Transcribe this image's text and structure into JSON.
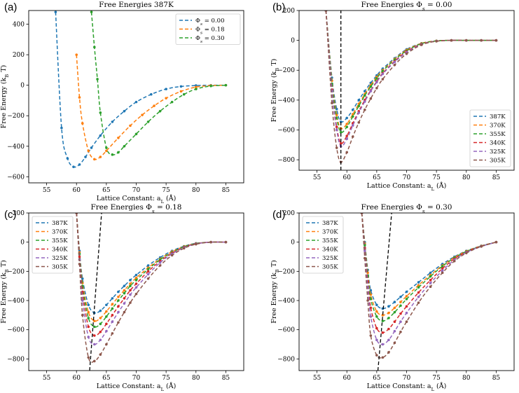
{
  "colors": {
    "387K": "#1f77b4",
    "370K": "#ff7f0e",
    "355K": "#2ca02c",
    "340K": "#d62728",
    "325K": "#9467bd",
    "305K": "#8c564b"
  },
  "panel_labels": [
    "(a)",
    "(b)",
    "(c)",
    "(d)"
  ],
  "chart_data": [
    {
      "type": "line",
      "title": "Free Energies 387K",
      "xlabel": "Lattice Constant: a_L (Å)",
      "ylabel": "Free Energy (k_B T)",
      "xlim": [
        52,
        88
      ],
      "ylim": [
        -640,
        490
      ],
      "xticks": [
        55,
        60,
        65,
        70,
        75,
        80,
        85
      ],
      "yticks": [
        -600,
        -400,
        -200,
        0,
        200,
        400
      ],
      "legend_position": "top-right",
      "series": [
        {
          "name": "Φs = 0.00",
          "color": "#1f77b4",
          "x": [
            56.5,
            57.5,
            58.5,
            59.5,
            60.5,
            61.5,
            62.5,
            64,
            66,
            68,
            70,
            72.5,
            75,
            77.5,
            80,
            82.5,
            85
          ],
          "y": [
            480,
            -280,
            -480,
            -535,
            -520,
            -470,
            -410,
            -330,
            -240,
            -170,
            -110,
            -60,
            -25,
            -8,
            -2,
            0,
            0
          ]
        },
        {
          "name": "Φs = 0.18",
          "color": "#ff7f0e",
          "x": [
            60,
            60.5,
            61,
            62,
            63,
            64,
            65,
            67,
            69,
            71,
            73,
            75,
            77.5,
            80,
            82.5,
            85
          ],
          "y": [
            200,
            -80,
            -250,
            -430,
            -485,
            -470,
            -430,
            -345,
            -265,
            -195,
            -135,
            -85,
            -40,
            -12,
            -2,
            0
          ]
        },
        {
          "name": "Φs = 0.30",
          "color": "#2ca02c",
          "x": [
            62.5,
            63,
            63.5,
            64,
            65,
            66,
            67,
            68,
            70,
            72,
            74,
            76,
            78,
            80,
            82.5,
            85
          ],
          "y": [
            480,
            250,
            40,
            -180,
            -410,
            -455,
            -440,
            -400,
            -320,
            -240,
            -170,
            -110,
            -60,
            -25,
            -5,
            0
          ]
        }
      ]
    },
    {
      "type": "line",
      "title": "Free Energies Φs = 0.00",
      "xlabel": "Lattice Constant: a_L (Å)",
      "ylabel": "Free Energy (k_B T)",
      "xlim": [
        52,
        88
      ],
      "ylim": [
        -870,
        200
      ],
      "xticks": [
        55,
        60,
        65,
        70,
        75,
        80,
        85
      ],
      "yticks": [
        -800,
        -600,
        -400,
        -200,
        0,
        200
      ],
      "legend_position": "bottom-right",
      "minimum_line": "vertical dashed at x = 59",
      "series": [
        {
          "name": "387K",
          "x": [
            56.5,
            57.5,
            58.3,
            59,
            60,
            61,
            62,
            63,
            64,
            65,
            66,
            68,
            70,
            72.5,
            75,
            77.5,
            80,
            82.5,
            85
          ],
          "y": [
            200,
            -250,
            -460,
            -545,
            -520,
            -465,
            -400,
            -340,
            -285,
            -235,
            -190,
            -120,
            -60,
            -20,
            -3,
            0,
            0,
            0,
            0
          ]
        },
        {
          "name": "370K",
          "x": [
            56.5,
            57.5,
            58.3,
            59,
            60,
            61,
            62,
            63,
            64,
            65,
            66,
            68,
            70,
            72.5,
            75,
            77.5,
            80,
            82.5,
            85
          ],
          "y": [
            200,
            -270,
            -500,
            -590,
            -560,
            -495,
            -425,
            -360,
            -300,
            -245,
            -200,
            -125,
            -65,
            -20,
            -3,
            0,
            0,
            0,
            0
          ]
        },
        {
          "name": "355K",
          "x": [
            56.5,
            57.5,
            58.3,
            59,
            60,
            61,
            62,
            63,
            64,
            65,
            66,
            68,
            70,
            72.5,
            75,
            77.5,
            80,
            82.5,
            85
          ],
          "y": [
            200,
            -290,
            -520,
            -615,
            -580,
            -510,
            -440,
            -370,
            -310,
            -255,
            -205,
            -130,
            -70,
            -22,
            -4,
            0,
            0,
            0,
            0
          ]
        },
        {
          "name": "340K",
          "x": [
            56.5,
            57.5,
            58.3,
            59,
            60,
            61,
            62,
            63,
            64,
            65,
            66,
            68,
            70,
            72.5,
            75,
            77.5,
            80,
            82.5,
            85
          ],
          "y": [
            200,
            -330,
            -580,
            -690,
            -640,
            -555,
            -475,
            -400,
            -335,
            -275,
            -220,
            -140,
            -75,
            -25,
            -5,
            0,
            0,
            0,
            0
          ]
        },
        {
          "name": "325K",
          "x": [
            56.5,
            57.5,
            58.3,
            59,
            60,
            61,
            62,
            63,
            64,
            65,
            66,
            68,
            70,
            72.5,
            75,
            77.5,
            80,
            82.5,
            85
          ],
          "y": [
            200,
            -340,
            -600,
            -710,
            -660,
            -570,
            -485,
            -410,
            -340,
            -280,
            -225,
            -145,
            -80,
            -27,
            -5,
            0,
            0,
            0,
            0
          ]
        },
        {
          "name": "305K",
          "x": [
            56.5,
            57.5,
            58.3,
            59,
            60,
            61,
            62,
            63,
            64,
            65,
            66,
            68,
            70,
            72.5,
            75,
            77.5,
            80,
            82.5,
            85
          ],
          "y": [
            200,
            -420,
            -720,
            -815,
            -750,
            -645,
            -550,
            -465,
            -390,
            -320,
            -260,
            -165,
            -90,
            -30,
            -6,
            0,
            0,
            0,
            0
          ]
        }
      ]
    },
    {
      "type": "line",
      "title": "Free Energies Φs = 0.18",
      "xlabel": "Lattice Constant: a_L (Å)",
      "ylabel": "Free Energy (k_B T)",
      "xlim": [
        52,
        88
      ],
      "ylim": [
        -880,
        200
      ],
      "xticks": [
        55,
        60,
        65,
        70,
        75,
        80,
        85
      ],
      "yticks": [
        -800,
        -600,
        -400,
        -200,
        0,
        200
      ],
      "legend_position": "top-left",
      "minimum_line": "dashed from (62.2, -880) to (64.2, 200)",
      "series": [
        {
          "name": "387K",
          "x": [
            60,
            60.5,
            61,
            62,
            63,
            64,
            65,
            66,
            67,
            68,
            69,
            70,
            72,
            74,
            76,
            78,
            80,
            82.5,
            85
          ],
          "y": [
            200,
            -60,
            -250,
            -430,
            -485,
            -470,
            -430,
            -385,
            -340,
            -300,
            -260,
            -225,
            -160,
            -105,
            -60,
            -28,
            -8,
            0,
            0
          ]
        },
        {
          "name": "370K",
          "x": [
            60,
            60.5,
            61,
            62,
            63,
            64,
            65,
            66,
            67,
            68,
            69,
            70,
            72,
            74,
            76,
            78,
            80,
            82.5,
            85
          ],
          "y": [
            200,
            -70,
            -280,
            -480,
            -540,
            -520,
            -475,
            -425,
            -375,
            -330,
            -285,
            -245,
            -175,
            -115,
            -65,
            -30,
            -9,
            0,
            0
          ]
        },
        {
          "name": "355K",
          "x": [
            60,
            60.5,
            61,
            62,
            63,
            64,
            65,
            66,
            67,
            68,
            69,
            70,
            72,
            74,
            76,
            78,
            80,
            82.5,
            85
          ],
          "y": [
            200,
            -80,
            -300,
            -520,
            -580,
            -560,
            -510,
            -455,
            -400,
            -350,
            -300,
            -260,
            -185,
            -120,
            -70,
            -32,
            -10,
            0,
            0
          ]
        },
        {
          "name": "340K",
          "x": [
            60,
            60.5,
            61,
            62,
            63,
            64,
            65,
            66,
            67,
            68,
            69,
            70,
            72,
            74,
            76,
            78,
            80,
            82.5,
            85
          ],
          "y": [
            200,
            -100,
            -340,
            -580,
            -640,
            -615,
            -560,
            -500,
            -440,
            -385,
            -330,
            -285,
            -200,
            -130,
            -75,
            -35,
            -11,
            0,
            0
          ]
        },
        {
          "name": "325K",
          "x": [
            60,
            60.5,
            61,
            62,
            63,
            64,
            65,
            66,
            67,
            68,
            69,
            70,
            72,
            74,
            76,
            78,
            80,
            82.5,
            85
          ],
          "y": [
            200,
            -120,
            -400,
            -650,
            -700,
            -670,
            -610,
            -545,
            -480,
            -420,
            -360,
            -310,
            -220,
            -140,
            -80,
            -38,
            -12,
            0,
            0
          ]
        },
        {
          "name": "305K",
          "x": [
            60,
            60.5,
            61,
            62,
            63,
            64,
            65,
            66,
            67,
            68,
            69,
            70,
            72,
            74,
            76,
            78,
            80,
            82.5,
            85
          ],
          "y": [
            200,
            -150,
            -500,
            -790,
            -815,
            -770,
            -700,
            -625,
            -550,
            -480,
            -415,
            -355,
            -250,
            -160,
            -90,
            -42,
            -14,
            0,
            0
          ]
        }
      ]
    },
    {
      "type": "line",
      "title": "Free Energies Φs = 0.30",
      "xlabel": "Lattice Constant: a_L (Å)",
      "ylabel": "Free Energy (k_B T)",
      "xlim": [
        52,
        88
      ],
      "ylim": [
        -880,
        200
      ],
      "xticks": [
        55,
        60,
        65,
        70,
        75,
        80,
        85
      ],
      "yticks": [
        -800,
        -600,
        -400,
        -200,
        0,
        200
      ],
      "legend_position": "top-left",
      "minimum_line": "dashed from (65.2, -880) to (67.5, 200)",
      "series": [
        {
          "name": "387K",
          "x": [
            62.5,
            63,
            63.5,
            64,
            65,
            66,
            67,
            68,
            69,
            70,
            72,
            74,
            76,
            78,
            80,
            82.5,
            85
          ],
          "y": [
            200,
            0,
            -190,
            -330,
            -430,
            -455,
            -440,
            -410,
            -375,
            -340,
            -275,
            -210,
            -150,
            -100,
            -60,
            -25,
            0
          ]
        },
        {
          "name": "370K",
          "x": [
            62.5,
            63,
            63.5,
            64,
            65,
            66,
            67,
            68,
            69,
            70,
            72,
            74,
            76,
            78,
            80,
            82.5,
            85
          ],
          "y": [
            200,
            -10,
            -210,
            -360,
            -475,
            -500,
            -485,
            -450,
            -410,
            -370,
            -295,
            -225,
            -160,
            -105,
            -62,
            -26,
            0
          ]
        },
        {
          "name": "355K",
          "x": [
            62.5,
            63,
            63.5,
            64,
            65,
            66,
            67,
            68,
            69,
            70,
            72,
            74,
            76,
            78,
            80,
            82.5,
            85
          ],
          "y": [
            200,
            -20,
            -230,
            -390,
            -510,
            -540,
            -520,
            -480,
            -435,
            -390,
            -310,
            -235,
            -165,
            -108,
            -64,
            -27,
            0
          ]
        },
        {
          "name": "340K",
          "x": [
            62.5,
            63,
            63.5,
            64,
            65,
            66,
            67,
            68,
            69,
            70,
            72,
            74,
            76,
            78,
            80,
            82.5,
            85
          ],
          "y": [
            200,
            -40,
            -270,
            -450,
            -590,
            -620,
            -595,
            -545,
            -490,
            -440,
            -345,
            -260,
            -180,
            -115,
            -68,
            -28,
            0
          ]
        },
        {
          "name": "325K",
          "x": [
            62.5,
            63,
            63.5,
            64,
            65,
            66,
            67,
            68,
            69,
            70,
            72,
            74,
            76,
            78,
            80,
            82.5,
            85
          ],
          "y": [
            200,
            -60,
            -310,
            -510,
            -670,
            -700,
            -670,
            -610,
            -545,
            -485,
            -375,
            -280,
            -195,
            -122,
            -70,
            -29,
            0
          ]
        },
        {
          "name": "305K",
          "x": [
            62.5,
            63,
            63.5,
            64,
            65,
            66,
            67,
            68,
            69,
            70,
            72,
            74,
            76,
            78,
            80,
            82.5,
            85
          ],
          "y": [
            200,
            -110,
            -400,
            -640,
            -775,
            -790,
            -755,
            -690,
            -615,
            -545,
            -415,
            -305,
            -210,
            -130,
            -75,
            -30,
            0
          ]
        }
      ]
    }
  ]
}
